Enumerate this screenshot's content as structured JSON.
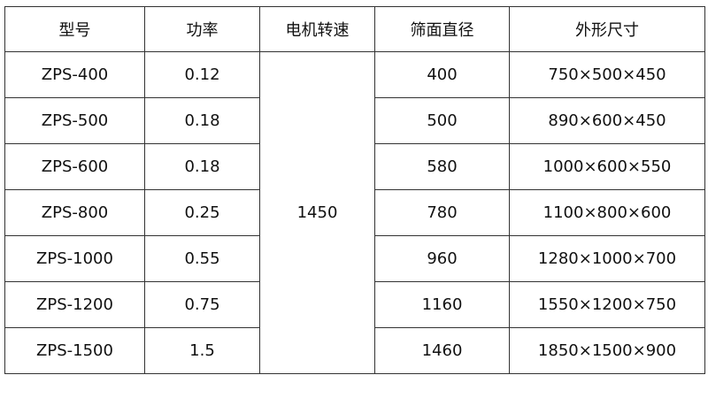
{
  "table": {
    "headers": [
      "型号",
      "功率",
      "电机转速",
      "筛面直径",
      "外形尺寸"
    ],
    "motor_speed": "1450",
    "rows": [
      {
        "model": "ZPS-400",
        "power": "0.12",
        "diameter": "400",
        "size": "750×500×450"
      },
      {
        "model": "ZPS-500",
        "power": "0.18",
        "diameter": "500",
        "size": "890×600×450"
      },
      {
        "model": "ZPS-600",
        "power": "0.18",
        "diameter": "580",
        "size": "1000×600×550"
      },
      {
        "model": "ZPS-800",
        "power": "0.25",
        "diameter": "780",
        "size": "1100×800×600"
      },
      {
        "model": "ZPS-1000",
        "power": "0.55",
        "diameter": "960",
        "size": "1280×1000×700"
      },
      {
        "model": "ZPS-1200",
        "power": "0.75",
        "diameter": "1160",
        "size": "1550×1200×750"
      },
      {
        "model": "ZPS-1500",
        "power": "1.5",
        "diameter": "1460",
        "size": "1850×1500×900"
      }
    ]
  }
}
